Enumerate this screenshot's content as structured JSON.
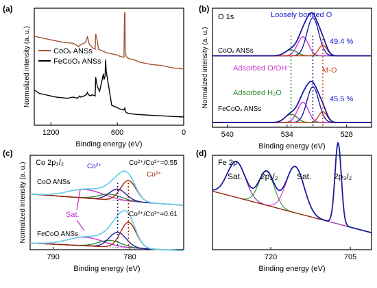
{
  "figure": {
    "background": "#ffffff"
  },
  "chart_data": [
    {
      "id": "a",
      "panel_label": "(a)",
      "type": "line",
      "title": "",
      "xlabel": "Binding energy (eV)",
      "ylabel": "Normalized intensity (a. u.)",
      "xlim": [
        1350,
        0
      ],
      "ylim": [
        0,
        10
      ],
      "xticks": [
        1200,
        600,
        0
      ],
      "legend": {
        "position": "left",
        "entries": [
          {
            "label": "CoOₓ ANSs",
            "color": "#a0522d"
          },
          {
            "label": "FeCoOₓ ANSs",
            "color": "#000000"
          }
        ]
      },
      "series": [
        {
          "name": "CoOₓ ANSs",
          "color": "#a0522d",
          "x": [
            1350,
            1300,
            1250,
            1200,
            1150,
            1100,
            1050,
            1000,
            980,
            960,
            950,
            930,
            900,
            880,
            870,
            855,
            850,
            820,
            800,
            795,
            780,
            770,
            750,
            720,
            700,
            650,
            600,
            580,
            560,
            540,
            535,
            531,
            528,
            520,
            500,
            450,
            400,
            350,
            300,
            250,
            200,
            150,
            100,
            50,
            0
          ],
          "y": [
            7.6,
            7.5,
            7.4,
            7.3,
            7.2,
            7.1,
            7.05,
            7.0,
            6.9,
            6.8,
            6.7,
            6.9,
            7.0,
            7.2,
            7.6,
            7.0,
            6.9,
            6.6,
            6.5,
            7.8,
            7.2,
            6.5,
            6.4,
            6.3,
            6.2,
            6.1,
            6.0,
            5.9,
            5.85,
            5.8,
            9.4,
            9.7,
            6.2,
            5.9,
            5.7,
            5.6,
            5.4,
            5.3,
            5.2,
            5.15,
            5.1,
            5.0,
            4.9,
            4.85,
            4.8
          ]
        },
        {
          "name": "FeCoOₓ ANSs",
          "color": "#000000",
          "x": [
            1350,
            1300,
            1250,
            1200,
            1150,
            1100,
            1050,
            1000,
            960,
            940,
            930,
            900,
            880,
            870,
            860,
            840,
            830,
            800,
            795,
            780,
            760,
            725,
            720,
            710,
            706,
            700,
            650,
            600,
            580,
            560,
            540,
            531,
            528,
            520,
            500,
            450,
            400,
            300,
            200,
            100,
            0
          ],
          "y": [
            3.0,
            2.7,
            2.6,
            2.5,
            2.4,
            2.35,
            2.3,
            2.4,
            2.3,
            2.5,
            2.4,
            2.5,
            2.6,
            2.8,
            2.6,
            2.5,
            2.6,
            2.5,
            4.1,
            3.3,
            2.9,
            4.4,
            3.9,
            4.2,
            5.6,
            4.6,
            1.7,
            1.5,
            1.4,
            1.35,
            1.3,
            1.5,
            1.2,
            1.1,
            1.0,
            0.95,
            0.9,
            0.85,
            0.8,
            0.75,
            0.7
          ]
        }
      ]
    },
    {
      "id": "b",
      "panel_label": "(b)",
      "type": "line",
      "subtitle": "O 1s",
      "xlabel": "Binding energy (eV)",
      "ylabel": "Normalized intensity (a. u.)",
      "xlim": [
        541.5,
        525.5
      ],
      "ylim": [
        0,
        10
      ],
      "xticks": [
        540,
        534,
        528
      ],
      "sample_labels": [
        "CoOₓ ANSs",
        "FeCoOₓ ANSs"
      ],
      "component_labels": [
        "Loosely bonded O",
        "Adsorbed O/OH⁻",
        "Adsorbed H₂O",
        "M-O"
      ],
      "percent_labels": [
        "49.4 %",
        "45.5 %"
      ],
      "components": [
        {
          "name": "Adsorbed H₂O",
          "color": "#2e8b2e",
          "center": 533.6,
          "fwhm": 1.4
        },
        {
          "name": "Adsorbed O/OH⁻",
          "color": "#cc33cc",
          "center": 532.4,
          "fwhm": 1.3
        },
        {
          "name": "Loosely bonded O",
          "color": "#1a1a9e",
          "center": 531.4,
          "fwhm": 1.4
        },
        {
          "name": "M-O",
          "color": "#cc4422",
          "center": 530.4,
          "fwhm": 1.0
        }
      ],
      "samples": [
        {
          "name": "CoOₓ ANSs",
          "baseline": 6.0,
          "amplitudes": [
            0.5,
            1.6,
            3.2,
            0.9
          ]
        },
        {
          "name": "FeCoOₓ ANSs",
          "baseline": 0.4,
          "amplitudes": [
            0.7,
            1.7,
            3.0,
            0.9
          ]
        }
      ],
      "ref_lines": [
        533.6,
        531.4,
        530.4
      ]
    },
    {
      "id": "c",
      "panel_label": "(c)",
      "type": "line",
      "subtitle": "Co 2p₃/₂",
      "xlabel": "Binding energy (eV)",
      "ylabel": "Normalized intensity (a. u.)",
      "xlim": [
        793,
        773
      ],
      "ylim": [
        0,
        10
      ],
      "xticks": [
        790,
        780
      ],
      "sample_labels": [
        "CoO ANSs",
        "FeCoO ANSs"
      ],
      "ratio_labels": [
        "Co²⁺/Co³⁺=0.55",
        "Co²⁺/Co³⁺=0.61"
      ],
      "component_labels": [
        "Co²⁺",
        "Co³⁺",
        "Sat."
      ],
      "components": [
        {
          "name": "Sat.",
          "color": "#cc33cc",
          "center": 785.8,
          "fwhm": 5.5
        },
        {
          "name": "Sat. 2",
          "color": "#2e8b2e",
          "center": 782.6,
          "fwhm": 3.5
        },
        {
          "name": "Co²⁺",
          "color": "#1a1a9e",
          "center": 781.6,
          "fwhm": 2.6
        },
        {
          "name": "Co³⁺",
          "color": "#aa2200",
          "center": 780.2,
          "fwhm": 2.4
        }
      ],
      "samples": [
        {
          "name": "CoO ANSs",
          "baseline": 5.9,
          "baseline_slope": -0.06,
          "amplitudes": [
            0.9,
            0.6,
            1.2,
            2.2
          ]
        },
        {
          "name": "FeCoO ANSs",
          "baseline": 0.7,
          "baseline_slope": -0.04,
          "amplitudes": [
            0.9,
            0.7,
            1.6,
            2.7
          ]
        }
      ],
      "ref_lines": [
        781.6,
        780.2
      ]
    },
    {
      "id": "d",
      "panel_label": "(d)",
      "type": "line",
      "subtitle": "Fe 2p",
      "xlabel": "Binding energy (eV)",
      "ylabel": "",
      "xlim": [
        731,
        701
      ],
      "ylim": [
        0,
        10
      ],
      "xticks": [
        720,
        705
      ],
      "peak_labels": [
        "Sat.",
        "2p₁/₂",
        "Sat.",
        "2p₃/₂"
      ],
      "components": [
        {
          "name": "Sat. (2p₁/₂)",
          "color": "#1a1a9e",
          "center": 726.5,
          "fwhm": 4.0
        },
        {
          "name": "2p₁/₂",
          "color": "#1a1a9e",
          "center": 720.8,
          "fwhm": 3.4
        },
        {
          "name": "Sat. (2p₃/₂)",
          "color": "#1a1a9e",
          "center": 715.4,
          "fwhm": 4.0
        },
        {
          "name": "2p₃/₂",
          "color": "#1a1a9e",
          "center": 707.3,
          "fwhm": 1.4
        }
      ],
      "amplitudes": [
        3.8,
        3.6,
        4.9,
        8.6
      ],
      "baseline": {
        "start": 6.2,
        "end": 1.8
      }
    }
  ]
}
